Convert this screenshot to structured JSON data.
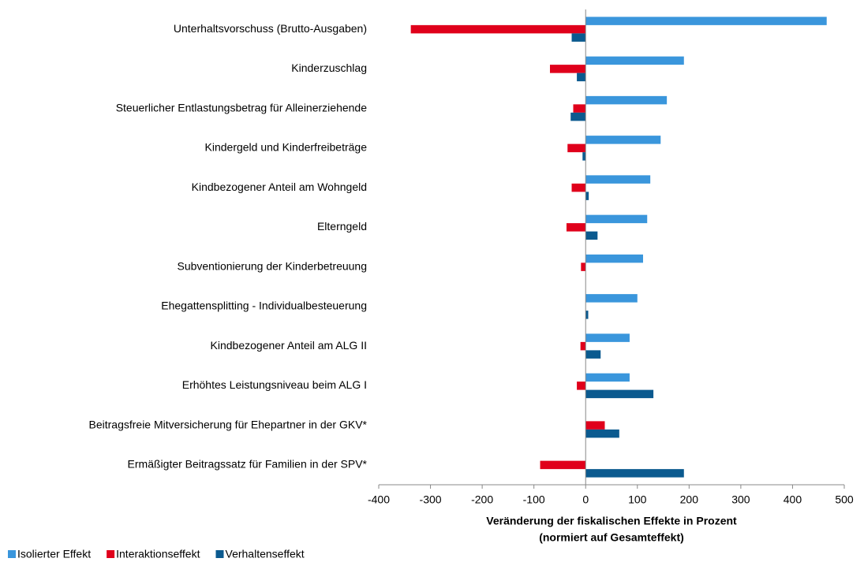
{
  "chart_data": {
    "type": "hbar",
    "categories": [
      "Unterhaltsvorschuss (Brutto-Ausgaben)",
      "Kinderzuschlag",
      "Steuerlicher Entlastungsbetrag für Alleinerziehende",
      "Kindergeld und Kinderfreibeträge",
      "Kindbezogener Anteil am Wohngeld",
      "Elterngeld",
      "Subventionierung der Kinderbetreuung",
      "Ehegattensplitting - Individualbesteuerung",
      "Kindbezogener Anteil am ALG II",
      "Erhöhtes Leistungsniveau beim ALG I",
      "Beitragsfreie Mitversicherung für Ehepartner in der GKV*",
      "Ermäßigter Beitragssatz für Familien in der SPV*"
    ],
    "series": [
      {
        "name": "Isolierter Effekt",
        "color": "#3a96dc",
        "values": [
          466,
          190,
          157,
          145,
          125,
          119,
          111,
          100,
          85,
          85,
          0,
          0
        ]
      },
      {
        "name": "Interaktionseffekt",
        "color": "#e0001b",
        "values": [
          -338,
          -69,
          -24,
          -35,
          -27,
          -37,
          -9,
          0,
          -10,
          -17,
          37,
          -88
        ]
      },
      {
        "name": "Verhaltenseffekt",
        "color": "#0b5a8f",
        "values": [
          -27,
          -17,
          -29,
          -6,
          6,
          23,
          0,
          5,
          29,
          131,
          65,
          190
        ]
      }
    ],
    "xlabel": [
      "Veränderung der fiskalischen Effekte in Prozent",
      "(normiert auf Gesamteffekt)"
    ],
    "xlim": [
      -400,
      500
    ],
    "xticks": [
      -400,
      -300,
      -200,
      -100,
      0,
      100,
      200,
      300,
      400,
      500
    ],
    "legend": "bottom"
  }
}
